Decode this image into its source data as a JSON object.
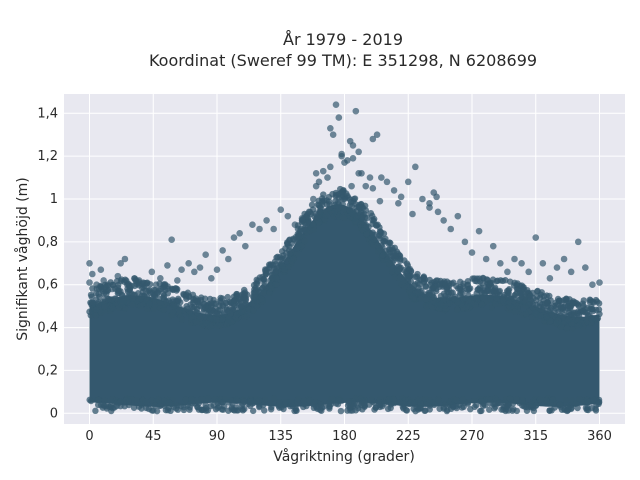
{
  "chart_data": {
    "type": "scatter",
    "title": "År 1979 - 2019",
    "subtitle": "Koordinat (Sweref 99 TM): E 351298, N 6208699",
    "xlabel": "Vågriktning (grader)",
    "ylabel": "Signifikant våghöjd (m)",
    "xlim": [
      -18,
      378
    ],
    "ylim": [
      -0.05,
      1.49
    ],
    "xticks": [
      0,
      45,
      90,
      135,
      180,
      225,
      270,
      315,
      360
    ],
    "xtick_labels": [
      "0",
      "45",
      "90",
      "135",
      "180",
      "225",
      "270",
      "315",
      "360"
    ],
    "yticks": [
      0,
      0.2,
      0.4,
      0.6,
      0.8,
      1,
      1.2,
      1.4
    ],
    "ytick_labels": [
      "0",
      "0,2",
      "0,4",
      "0,6",
      "0,8",
      "1",
      "1,2",
      "1,4"
    ],
    "grid": true,
    "plot_background": "#e8e8f0",
    "grid_color": "#ffffff",
    "marker_color": "#34586e",
    "series": [
      {
        "values_x": [
          0,
          0,
          2,
          5,
          8,
          10,
          13,
          16,
          20,
          22,
          25,
          28,
          31,
          35,
          40,
          44,
          47,
          50,
          55,
          58,
          62,
          65,
          70,
          74,
          78,
          82,
          86,
          90,
          94,
          98,
          102,
          106,
          110,
          115,
          120,
          125,
          130,
          135,
          140,
          145,
          150,
          155,
          158,
          160,
          162,
          165,
          168,
          170,
          172,
          174,
          176,
          178,
          180,
          182,
          184,
          186,
          188,
          190,
          192,
          195,
          198,
          200,
          203,
          206,
          210,
          215,
          220,
          225,
          230,
          235,
          240,
          243,
          245,
          250,
          255,
          260,
          265,
          270,
          275,
          280,
          285,
          290,
          295,
          300,
          305,
          310,
          315,
          320,
          325,
          330,
          335,
          340,
          345,
          350,
          355,
          360,
          170,
          178,
          186,
          200,
          160,
          185,
          240,
          246,
          218,
          178,
          190,
          205,
          150,
          228
        ],
        "values_y": [
          0.7,
          0.61,
          0.65,
          0.6,
          0.67,
          0.62,
          0.6,
          0.58,
          0.64,
          0.7,
          0.72,
          0.6,
          0.55,
          0.62,
          0.57,
          0.66,
          0.6,
          0.63,
          0.69,
          0.81,
          0.62,
          0.67,
          0.7,
          0.66,
          0.68,
          0.74,
          0.63,
          0.67,
          0.76,
          0.72,
          0.82,
          0.84,
          0.78,
          0.88,
          0.86,
          0.9,
          0.86,
          0.95,
          0.92,
          0.88,
          0.9,
          0.94,
          1.0,
          1.06,
          1.08,
          1.13,
          1.1,
          1.15,
          1.3,
          1.44,
          1.38,
          1.2,
          1.17,
          1.18,
          1.27,
          1.25,
          1.41,
          1.22,
          1.12,
          1.06,
          1.1,
          1.28,
          1.3,
          1.1,
          1.08,
          1.04,
          1.01,
          1.08,
          1.15,
          1.0,
          0.98,
          1.03,
          1.01,
          0.9,
          0.86,
          0.92,
          0.8,
          0.75,
          0.85,
          0.72,
          0.78,
          0.7,
          0.66,
          0.72,
          0.7,
          0.66,
          0.82,
          0.7,
          0.63,
          0.68,
          0.72,
          0.66,
          0.8,
          0.68,
          0.6,
          0.61,
          1.33,
          1.21,
          1.19,
          1.05,
          1.12,
          1.06,
          0.96,
          0.94,
          0.98,
          1.02,
          1.12,
          0.99,
          0.91,
          0.93
        ]
      }
    ]
  }
}
